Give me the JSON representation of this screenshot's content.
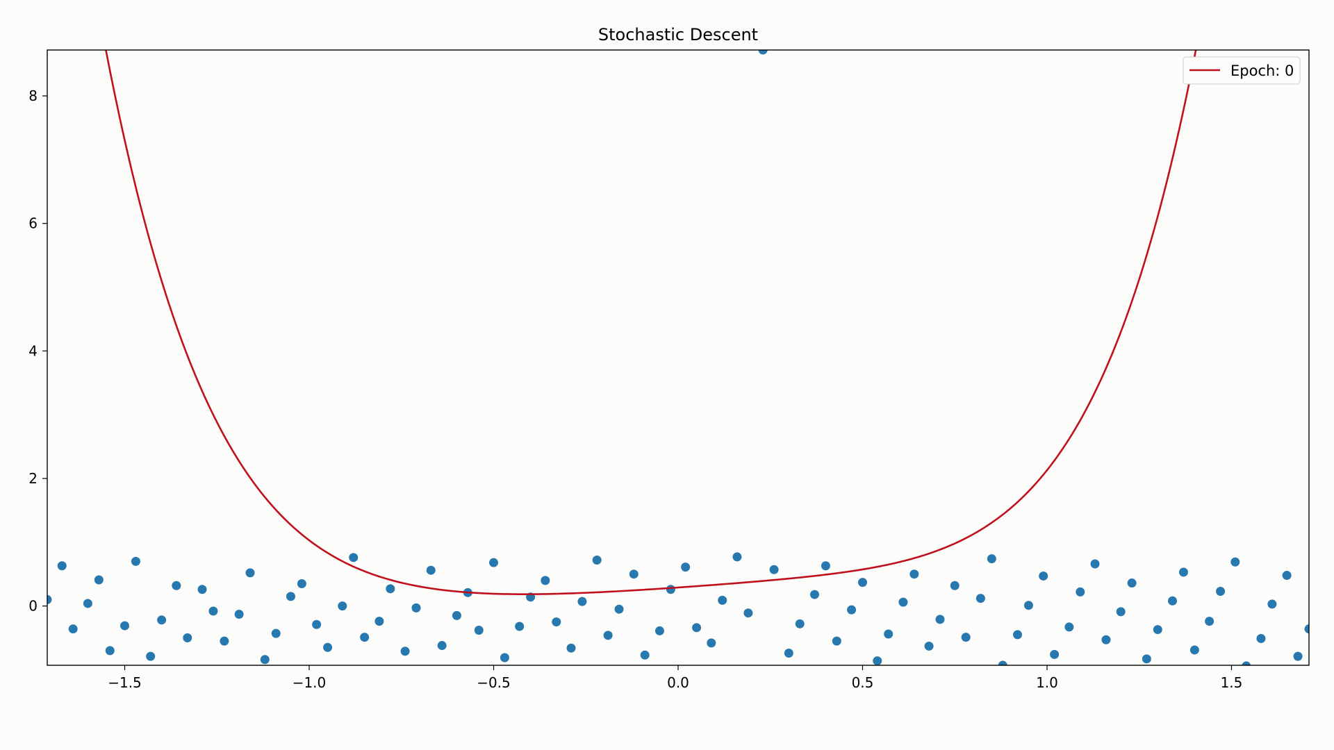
{
  "chart_data": {
    "type": "scatter",
    "title": "Stochastic Descent",
    "xlabel": "",
    "ylabel": "",
    "xlim": [
      -1.71,
      1.71
    ],
    "ylim": [
      -0.93,
      8.72
    ],
    "xticks": [
      -1.5,
      -1.0,
      -0.5,
      0.0,
      0.5,
      1.0,
      1.5
    ],
    "xtick_labels": [
      "−1.5",
      "−1.0",
      "−0.5",
      "0.0",
      "0.5",
      "1.0",
      "1.5"
    ],
    "yticks": [
      0,
      2,
      4,
      6,
      8
    ],
    "ytick_labels": [
      "0",
      "2",
      "4",
      "6",
      "8"
    ],
    "grid": false,
    "legend_position": "top-right",
    "colors": {
      "scatter": "#2878b0",
      "curve": "#c0101c",
      "background": "#fcfcfb"
    },
    "series": [
      {
        "name": "Epoch: 0",
        "kind": "line",
        "coefficients_ascending": [
          0.29,
          0.4,
          0.2,
          -0.15,
          0.55,
          0.3,
          0.54
        ],
        "x_range": [
          -1.71,
          1.71
        ]
      },
      {
        "kind": "scatter",
        "points": [
          [
            -1.71,
            0.1
          ],
          [
            -1.67,
            0.63
          ],
          [
            -1.64,
            -0.36
          ],
          [
            -1.6,
            0.04
          ],
          [
            -1.57,
            0.41
          ],
          [
            -1.54,
            -0.7
          ],
          [
            -1.5,
            -0.31
          ],
          [
            -1.47,
            0.7
          ],
          [
            -1.43,
            -0.79
          ],
          [
            -1.4,
            -0.22
          ],
          [
            -1.36,
            0.32
          ],
          [
            -1.33,
            -0.5
          ],
          [
            -1.29,
            0.26
          ],
          [
            -1.26,
            -0.08
          ],
          [
            -1.23,
            -0.55
          ],
          [
            -1.19,
            -0.13
          ],
          [
            -1.16,
            0.52
          ],
          [
            -1.12,
            -0.84
          ],
          [
            -1.09,
            -0.43
          ],
          [
            -1.05,
            0.15
          ],
          [
            -1.02,
            0.35
          ],
          [
            -0.98,
            -0.29
          ],
          [
            -0.95,
            -0.65
          ],
          [
            -0.91,
            0.0
          ],
          [
            -0.88,
            0.76
          ],
          [
            -0.85,
            -0.49
          ],
          [
            -0.81,
            -0.24
          ],
          [
            -0.78,
            0.27
          ],
          [
            -0.74,
            -0.71
          ],
          [
            -0.71,
            -0.03
          ],
          [
            -0.67,
            0.56
          ],
          [
            -0.64,
            -0.62
          ],
          [
            -0.6,
            -0.15
          ],
          [
            -0.57,
            0.21
          ],
          [
            -0.54,
            -0.38
          ],
          [
            -0.5,
            0.68
          ],
          [
            -0.47,
            -0.81
          ],
          [
            -0.43,
            -0.32
          ],
          [
            -0.4,
            0.14
          ],
          [
            -0.36,
            0.4
          ],
          [
            -0.33,
            -0.25
          ],
          [
            -0.29,
            -0.66
          ],
          [
            -0.26,
            0.07
          ],
          [
            -0.22,
            0.72
          ],
          [
            -0.19,
            -0.46
          ],
          [
            -0.16,
            -0.05
          ],
          [
            -0.12,
            0.5
          ],
          [
            -0.09,
            -0.77
          ],
          [
            -0.05,
            -0.39
          ],
          [
            -0.02,
            0.26
          ],
          [
            0.02,
            0.61
          ],
          [
            0.05,
            -0.34
          ],
          [
            0.09,
            -0.58
          ],
          [
            0.12,
            0.09
          ],
          [
            0.16,
            0.77
          ],
          [
            0.19,
            -0.11
          ],
          [
            0.23,
            8.72
          ],
          [
            0.26,
            0.57
          ],
          [
            0.3,
            -0.74
          ],
          [
            0.33,
            -0.28
          ],
          [
            0.37,
            0.18
          ],
          [
            0.4,
            0.63
          ],
          [
            0.43,
            -0.55
          ],
          [
            0.47,
            -0.06
          ],
          [
            0.5,
            0.37
          ],
          [
            0.54,
            -0.86
          ],
          [
            0.57,
            -0.44
          ],
          [
            0.61,
            0.06
          ],
          [
            0.64,
            0.5
          ],
          [
            0.68,
            -0.63
          ],
          [
            0.71,
            -0.21
          ],
          [
            0.75,
            0.32
          ],
          [
            0.78,
            -0.49
          ],
          [
            0.82,
            0.12
          ],
          [
            0.85,
            0.74
          ],
          [
            0.88,
            -0.93
          ],
          [
            0.92,
            -0.45
          ],
          [
            0.95,
            0.01
          ],
          [
            0.99,
            0.47
          ],
          [
            1.02,
            -0.76
          ],
          [
            1.06,
            -0.33
          ],
          [
            1.09,
            0.22
          ],
          [
            1.13,
            0.66
          ],
          [
            1.16,
            -0.53
          ],
          [
            1.2,
            -0.09
          ],
          [
            1.23,
            0.36
          ],
          [
            1.27,
            -0.83
          ],
          [
            1.3,
            -0.37
          ],
          [
            1.34,
            0.08
          ],
          [
            1.37,
            0.53
          ],
          [
            1.4,
            -0.69
          ],
          [
            1.44,
            -0.24
          ],
          [
            1.47,
            0.23
          ],
          [
            1.51,
            0.69
          ],
          [
            1.54,
            -0.94
          ],
          [
            1.58,
            -0.51
          ],
          [
            1.61,
            0.03
          ],
          [
            1.65,
            0.48
          ],
          [
            1.68,
            -0.79
          ],
          [
            1.71,
            -0.36
          ]
        ]
      }
    ]
  }
}
